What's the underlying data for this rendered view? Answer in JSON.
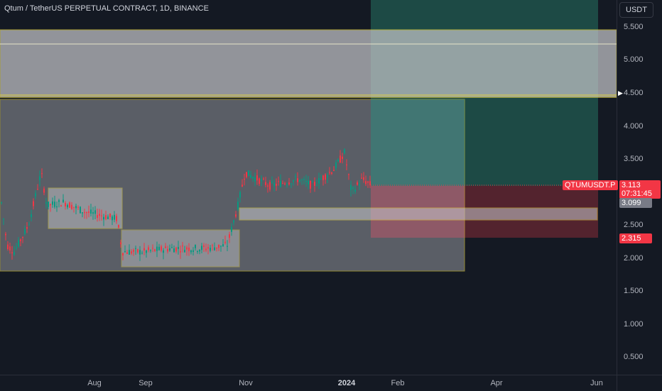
{
  "header": {
    "title": "Qtum / TetherUS PERPETUAL CONTRACT, 1D, BINANCE"
  },
  "currency_button": "USDT",
  "price_axis": {
    "ticks": [
      "5.500",
      "5.000",
      "4.500",
      "4.000",
      "3.500",
      "3.000",
      "2.500",
      "2.000",
      "1.500",
      "1.000",
      "0.500"
    ],
    "tick_values": [
      5.5,
      5.0,
      4.5,
      4.0,
      3.5,
      3.0,
      2.5,
      2.0,
      1.5,
      1.0,
      0.5
    ],
    "last_price": "3.113",
    "countdown": "07:31:45",
    "level_label_1": "3.099",
    "level_label_2": "2.315"
  },
  "symbol_tag": "QTUMUSDT.P",
  "time_axis": {
    "labels": [
      "Aug",
      "Sep",
      "Nov",
      "2024",
      "Feb",
      "Apr",
      "Jun"
    ]
  },
  "colors": {
    "background": "#141923",
    "up_candle": "#089981",
    "down_candle": "#f23645",
    "zone_border": "#e6d33b",
    "gray_zone": "#a9aab0",
    "profit_zone": "#2a6f6a",
    "loss_zone": "#8c3440"
  },
  "icons": {
    "alert_marker": "right-triangle-icon"
  }
}
